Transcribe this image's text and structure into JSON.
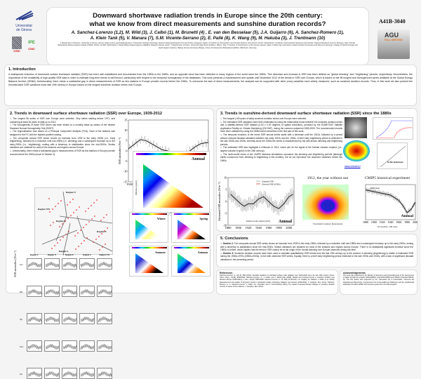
{
  "header": {
    "title_line1": "Downward shortwave radiation trends in Europe since the 20th century:",
    "title_line2": "what we know from direct measurements and sunshine duration records?",
    "authors_line1": "A. Sanchez-Lorenzo (1,2), M. Wild (3), J. Calbó (1), M. Brunetti (4) , E. van den Besselaar (5), J.A. Guijarro (6), A. Sanchez-Romero (1),",
    "authors_line2": "A. Klein Tank (5), V. Manara (7), S.M. Vicente-Serrano (2), E. Pallé (8), K. Wang (9), M. Hakuba (3), J. Trentmann (10)",
    "affiliations": "1 Department of Physics, University of Girona, Girona, Spain (arturo.sanchez@udg.edu); 2 Pyrenean Institute of Ecology, Spanish National Research Council (CSIC), Zaragoza, Spain; 3 Institute for Atmospheric and Climate Science, ETH Zurich, Zurich, Switzerland; 4 Institute of Atmospheric Sciences and Climate, National Research Council, Bologna, Italy; 5 Royal Netherlands Meteorological Institute (KNMI), KS/KA, De Bilt, Netherlands; 6 State Meteorological Agency (AEMET), Balearic Islands, Spain; 7 Dipartimento di Fisica, Università degli Studi di Milano, Milano, Italy; 8 Institute of Astrophysics of the Canary Islands, Spain; 9 State Key Laboratory of Earth Surface Processes and Resource Ecology, College of Global Change and Earth System Science, Beijing Normal University, Beijing, China; 10 Deutscher Wetterdienst (DWD), Offenbach, Germany",
    "poster_code": "A41B-3040",
    "logos": {
      "udg": "Universitat de Girona",
      "csic1": "CSIC",
      "ipe": "IPE CSIC",
      "agu": "AGU FALL MEETING"
    }
  },
  "intro": {
    "heading": "1. Introduction",
    "text": "A widespread reduction of downward surface shortwave radiation (SSR) has been well established and documented from the 1950s to the 1980s, and an opposite trend has been detected in many regions of the world since the 1980s. This decrease and increase in SSR has been defined as \"global dimming\" and \"brightening\" periods, respectively. Nevertheless, the importance of the availability of high-quality SSR data in order to estimate long-term trends is well known, particularly with respect to the temporal homogeneity of the databases. This work presents a reassessment and update until December 2012 of the trends in SSR over Europe, which is based on the 56 longest and homogenized series available at the Global Energy Balance Archive (GEBA). Unfortunately, there exists a substantial gap in direct measurements of SSR as few stations in Europe provide records before the 1960s. To overcome the lack of direct measurements, the analysis can be supported with other proxy variables more widely measured, such as sunshine duration records. Thus, in this work we also present the reconstructed SSR variations since late 19th century in Europe based on the longest sunshine duration series over Europe."
  },
  "sec2": {
    "heading": "2. Trends in downward surface shortwave radiation (SSR) over Europe, 1939-2012",
    "bullets": [
      "The longest 56 series of SSR over Europe were selected. Only series starting before 1971, and containing at least 30 years of data up to 2012.",
      "The homogeneity of these SSR series has been tested on a monthly basis by means of the relative Standard Normal Homogeneity Test (SNHT).",
      "The regionalization was based on a Principal Component Analysis (PCA). Each of the stations was assigned to the PC with the highest positive loading.",
      "The composite annual SSR series shows an increase from 1939 to the early 1950s (i.e., early brightening), followed by a reduction until mid-1980s (i.e. dimming) and a subsequent increase up to the early-2000s (i.e., brightening), ending with a tendency to stabilization since the mid-2000s. Similar variations are obtained for most of the seasons and regions across Europe.",
      "Unfortunately, there exists a substantial gap in measurements of SSR as few stations in Europe provide records before the 1960s (move to Section 3)."
    ],
    "regions": [
      "Region N",
      "Region NW",
      "Region C",
      "Region E",
      "Region S"
    ],
    "panel_regions": [
      "Region C",
      "Region N",
      "Region E",
      "Region S",
      "Region NW"
    ],
    "panel_rows": [
      "Ann",
      "Win",
      "Spr",
      "Sum",
      "Aut"
    ],
    "panel_ylabel": "SSR anomalies (Wm⁻²)",
    "annual_label": "Annual",
    "season_labels": [
      "Winter",
      "Spring",
      "Summer",
      "Autumn"
    ],
    "heatmap_xlabel": "Starting year",
    "heatmap_ylabel": "Window (years)"
  },
  "sec3": {
    "heading": "3. Trends in sunshine-derived downward surface shortwave radiation (SSR) since the 1880s",
    "bullets": [
      "The longest (>80 years of data) sunshine duration series over Europe were selected.",
      "The estimated SSR variations have been estimated by using the relationship found between the sunshine duration series and a satellite-derived SSR dataset (0.03 x 0.03 degrees of spatial resolution), provided by the EUMETSAT Satellite Application Facility on Climate Monitoring (CM SAF), during the common subperiod 1983-2005. The reconstructed records have been validated by using the GEBA series described in the first part of this work.",
      "The temporal evolution of the mean SSR annual series starts with a decrease until the 1910s, followed by a period without relevant decadal variations between the early 1910s and the 1930s. A brief early brightening period is detected in the late 1930s and 1940s, whereas since the 1950s the series is characterized by the well-known dimming and brightening periods.",
      "The estimated SSR also highlights a minimum in 1912, which can be the signal of the Katmai volcanic eruption (i.e., largest volcanic eruption in the 20th century).",
      "The multi-model mean of the CMIP5 historical simulations reproduce the dimming and brightening periods (although earlier turnaround from dimming to brightening in the models), but do not reproduce the observed variations before the 1960s."
    ],
    "link": "www.cmsaf.eu",
    "station_label": "De Bilt, Netherlands",
    "legend": [
      "Estimated SSR",
      "Observed SSR (GEBA)"
    ],
    "annotation": "Katmai volcanic eruption (1912)",
    "annual_label": "Annual",
    "fig1912_title": "1912, the year without sun",
    "fig1912_caption": "Twentieth Century Reanalysis",
    "cmip_title": "CMIP5 historical experiment",
    "cmip_caption": "42 models, 106 runs",
    "cmip_legend": "CMIP5 mean",
    "ylabel": "Estimated SSR anomalies (Wm⁻²)"
  },
  "concl": {
    "heading": "5. Conclusions",
    "items": [
      {
        "lead": "Section 2:",
        "text": " The composite annual SSR series shows an increase from 1939 to the early 1950s, followed by a reduction until mid-1980s and a subsequent increase up to the early-2000s, ending with a tendency to stabilization since the mid-2000s. Similar variations are obtained for most of the seasons and regions across Europe. There is no statistically significant increase since the 1950s or before, which implies that the trend in SSR cannot be at the origin of the overall warming over Europe observed during this time."
      },
      {
        "lead": "Section 3:",
        "text": " Sunshine duration records have been used to estimate quantitatively SSR trends from the late 19th century up to the present. A dimming (brightening) is visible in estimated SSR during the 1950s-1970s (1980s-2000s), in line with observed SSR series. Equally, there is a brief early brightening period restricted to the late 1930s and 1940s, with a lack of significant decadal variations in the preceding period."
      }
    ]
  },
  "refs": {
    "heading": "References",
    "text": "Sanchez-Lorenzo, A., and M. Wild (2012), Decadal variations in estimated surface solar radiation over Switzerland since the late 19th century, Atmos. Chem. Phys., 12(18), 8635-8644. Sanchez-Lorenzo, A., J. Calbó, and J. Martin-Vide (2008), Spatial and temporal trends in sunshine duration over Western Europe (1938-2004), J. Clim., 21(22), 6089-6098. Sanchez-Lorenzo, A., M. Wild, M. Brunetti, J.A. Guijarro, M. Hakuba, J. Calbó, et al. (2015), Reassessment and update of long-term trends in downward surface shortwave radiation over Europe (1939-2012), J. Geophys. Res. Atmos. Sanchez-Romero, A., A. Sanchez-Lorenzo, J. Calbó, J.A. González, and C. Azorin-Molina (2014), The signal of aerosol-induced changes in sunshine duration records: A review of the evidence, J. Geophys. Res. Atmos."
  },
  "ack": {
    "heading": "Acknowledgements",
    "text": "This work was supported by the Ministry of Economy and Competitiveness of the Government of Spain through the projects NUCLIERSOL (CGL2010-18546) and HIGRO (CGL2014-55976-R). The first author was supported by the \"Secretaria per a Universitats i Recerca del Departament d'Economia i Coneixement de la Generalitat de Catalunya\" and the postdoctoral fellowship JCI-2012-12508. KW received a grant from the CMA program."
  },
  "chart_data": [
    {
      "type": "line",
      "title": "",
      "xlabel": "",
      "ylabel": "SSR anomalies (Wm⁻²)",
      "xlim": [
        1939,
        2012
      ],
      "ylim": [
        -15,
        15
      ],
      "x_ticks": [
        1940,
        1950,
        1960,
        1970,
        1980,
        1990,
        2000,
        2010
      ],
      "y_ticks": [
        -15,
        -10,
        -5,
        0,
        5,
        10,
        15
      ],
      "series": [
        {
          "x": [
            1939,
            1945,
            1950,
            1955,
            1960,
            1965,
            1970,
            1975,
            1980,
            1985,
            1990,
            1995,
            2000,
            2005,
            2010,
            2012
          ],
          "values": [
            1,
            3.5,
            5.5,
            5,
            3.5,
            2,
            0.5,
            0,
            -1.5,
            -3,
            -2,
            0,
            2,
            3.5,
            4,
            4
          ]
        }
      ]
    },
    {
      "type": "line",
      "title": "",
      "xlabel": "",
      "ylabel": "Estimated SSR anomalies (Wm⁻²)",
      "xlim": [
        1880,
        2010
      ],
      "ylim": [
        -10,
        10
      ],
      "x_ticks": [
        1880,
        1900,
        1920,
        1940,
        1960,
        1980,
        2000
      ],
      "y_ticks": [
        -10,
        -5,
        0,
        5,
        10
      ],
      "series": [
        {
          "name": "Estimated SSR",
          "x": [
            1885,
            1895,
            1905,
            1912,
            1920,
            1930,
            1940,
            1950,
            1960,
            1970,
            1980,
            1990,
            2000,
            2008
          ],
          "values": [
            3,
            1,
            -1,
            -2,
            -1,
            -1,
            1,
            2,
            0,
            -2,
            -3,
            -1,
            2,
            3
          ]
        }
      ]
    },
    {
      "type": "line",
      "title": "CMIP5 historical experiment",
      "xlim": [
        1880,
        2000
      ],
      "ylim": [
        -6,
        4
      ],
      "x_ticks": [
        1880,
        1900,
        1920,
        1940,
        1960,
        1980,
        2000
      ],
      "series": [
        {
          "name": "CMIP5 mean",
          "x": [
            1880,
            1900,
            1920,
            1940,
            1960,
            1970,
            1980,
            1990,
            2000
          ],
          "values": [
            2.5,
            2,
            1.5,
            1,
            -0.5,
            -2,
            -4,
            -3,
            -1
          ]
        }
      ]
    }
  ]
}
